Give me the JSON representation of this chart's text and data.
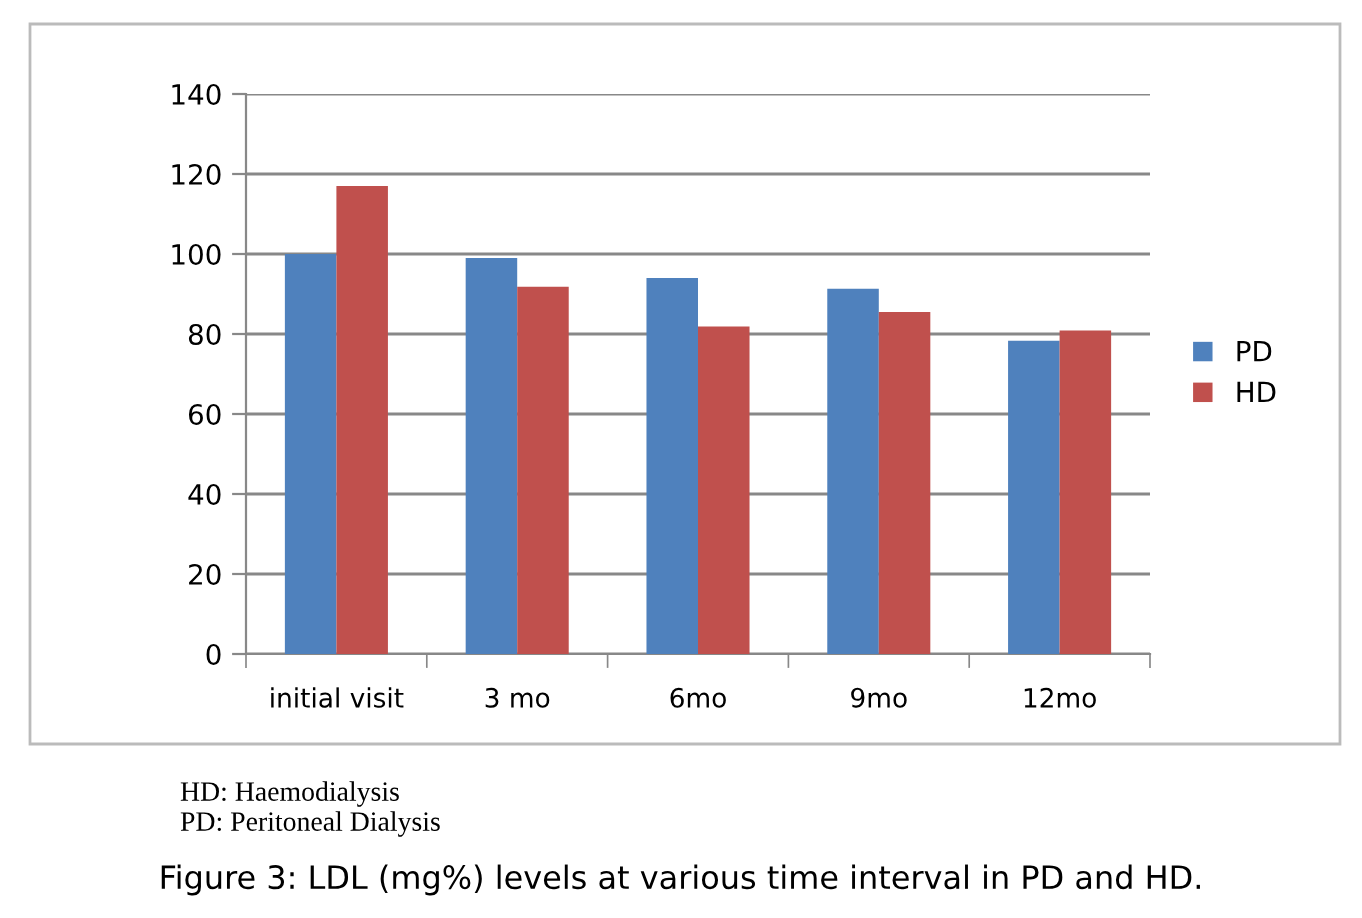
{
  "chart_data": {
    "type": "bar",
    "title": "Figure 3: LDL (mg%) levels at various time interval in PD and HD.",
    "categories": [
      "initial visit",
      "3 mo",
      "6mo",
      "9mo",
      "12mo"
    ],
    "series": [
      {
        "name": "PD",
        "color": "#4f81bd",
        "values": [
          100,
          99,
          94,
          91.3,
          78.3
        ]
      },
      {
        "name": "HD",
        "color": "#c0504d",
        "values": [
          117,
          91.8,
          81.9,
          85.5,
          80.9
        ]
      }
    ],
    "ylim": [
      0,
      140
    ],
    "yticks": [
      0,
      20,
      40,
      60,
      80,
      100,
      120,
      140
    ],
    "grid": "y",
    "legend": "right",
    "annotations": [
      "HD: Haemodialysis",
      "PD: Peritoneal Dialysis"
    ]
  }
}
